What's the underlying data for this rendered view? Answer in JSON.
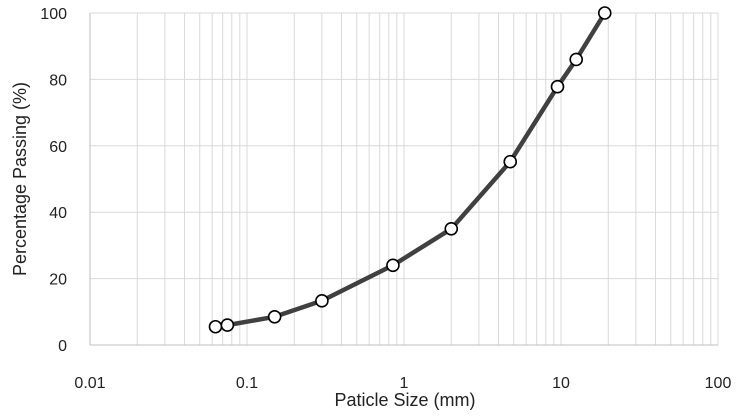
{
  "chart_data": {
    "type": "line",
    "xlabel": "Paticle Size (mm)",
    "ylabel": "Percentage Passing (%)",
    "x_scale": "log",
    "xlim": [
      0.01,
      100
    ],
    "ylim": [
      0,
      100
    ],
    "x_ticks": [
      "0.01",
      "0.1",
      "1",
      "10",
      "100"
    ],
    "y_ticks": [
      "0",
      "20",
      "40",
      "60",
      "80",
      "100"
    ],
    "grid": true,
    "legend": "none",
    "colors": {
      "line": "#404040",
      "marker_fill": "#ffffff",
      "marker_edge": "#000000",
      "grid": "#d9d9d9"
    },
    "series": [
      {
        "x": [
          0.063,
          0.075,
          0.15,
          0.3,
          0.85,
          2.0,
          4.75,
          9.5,
          12.5,
          19.0
        ],
        "y": [
          5.5,
          6.0,
          8.5,
          13.3,
          24.0,
          35.0,
          55.2,
          77.8,
          86.0,
          100.0
        ]
      }
    ]
  }
}
